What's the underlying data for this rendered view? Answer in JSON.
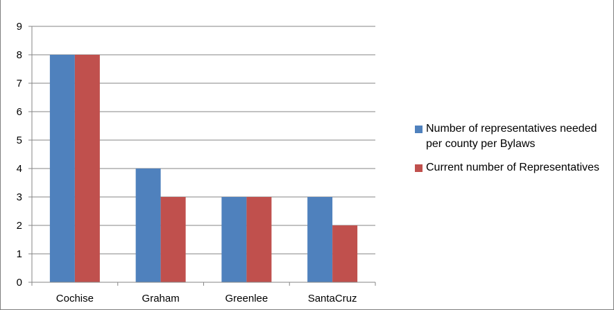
{
  "chart_data": {
    "type": "bar",
    "title": "",
    "xlabel": "",
    "ylabel": "",
    "categories": [
      "Cochise",
      "Graham",
      "Greenlee",
      "SantaCruz"
    ],
    "series": [
      {
        "name": "Number of representatives needed per county per Bylaws",
        "values": [
          8,
          4,
          3,
          3
        ],
        "color": "#4F81BD"
      },
      {
        "name": "Current number of Representatives",
        "values": [
          8,
          3,
          3,
          2
        ],
        "color": "#C0504D"
      }
    ],
    "ylim": [
      0,
      9
    ],
    "yticks": [
      0,
      1,
      2,
      3,
      4,
      5,
      6,
      7,
      8,
      9
    ],
    "grid": true,
    "legend_position": "right"
  }
}
